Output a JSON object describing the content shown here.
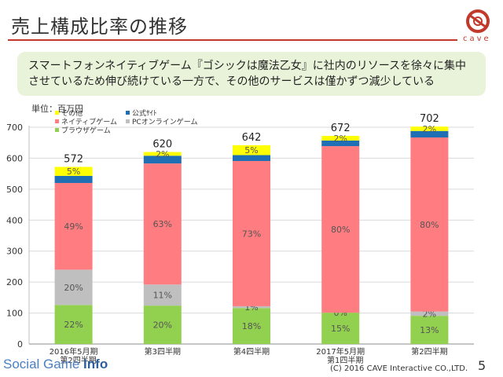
{
  "slide": {
    "title": "売上構成比率の推移",
    "logo_text": "cave",
    "summary": "スマートフォンネイティブゲーム『ゴシックは魔法乙女』に社内のリソースを徐々に集中させているため伸び続けている一方で、その他のサービスは僅かずつ減少している",
    "unit": "単位：百万円",
    "footer_brand_plain": "Social Game ",
    "footer_brand_bold": "Info",
    "copyright": "(C) 2016 CAVE Interactive CO.,LTD.",
    "page_number": "5"
  },
  "colors": {
    "browser": "#92d050",
    "pc_online": "#bfbfbf",
    "native": "#ff7c80",
    "official": "#1f6fb4",
    "other": "#ffff00",
    "accent": "#c0392b"
  },
  "chart_data": {
    "type": "bar",
    "stacked": true,
    "categories": [
      [
        "2016年5月期",
        "第2四半期"
      ],
      [
        "第3四半期"
      ],
      [
        "第4四半期"
      ],
      [
        "2017年5月期",
        "第1四半期"
      ],
      [
        "第2四半期"
      ]
    ],
    "totals": [
      572,
      620,
      642,
      672,
      702
    ],
    "ylim": [
      0,
      700
    ],
    "yticks": [
      0,
      100,
      200,
      300,
      400,
      500,
      600,
      700
    ],
    "grid": true,
    "legend_position": "top-left",
    "series": [
      {
        "name": "ブラウザゲーム",
        "color_key": "browser",
        "values": [
          126,
          124,
          116,
          101,
          91
        ],
        "labels": [
          "22%",
          "20%",
          "18%",
          "15%",
          "13%"
        ]
      },
      {
        "name": "PCオンラインゲーム",
        "color_key": "pc_online",
        "values": [
          114,
          68,
          6,
          0,
          14
        ],
        "labels": [
          "20%",
          "11%",
          "1%",
          "0%",
          "2%"
        ]
      },
      {
        "name": "ネイティブゲーム",
        "color_key": "native",
        "values": [
          280,
          391,
          469,
          538,
          562
        ],
        "labels": [
          "49%",
          "63%",
          "73%",
          "80%",
          "80%"
        ]
      },
      {
        "name": "公式ｻｲﾄ",
        "color_key": "official",
        "values": [
          23,
          25,
          19,
          18,
          21
        ],
        "labels": [
          "",
          "",
          "",
          "",
          ""
        ]
      },
      {
        "name": "その他",
        "color_key": "other",
        "values": [
          29,
          12,
          32,
          15,
          14
        ],
        "labels": [
          "5%",
          "2%",
          "5%",
          "2%",
          "2%"
        ]
      }
    ]
  }
}
